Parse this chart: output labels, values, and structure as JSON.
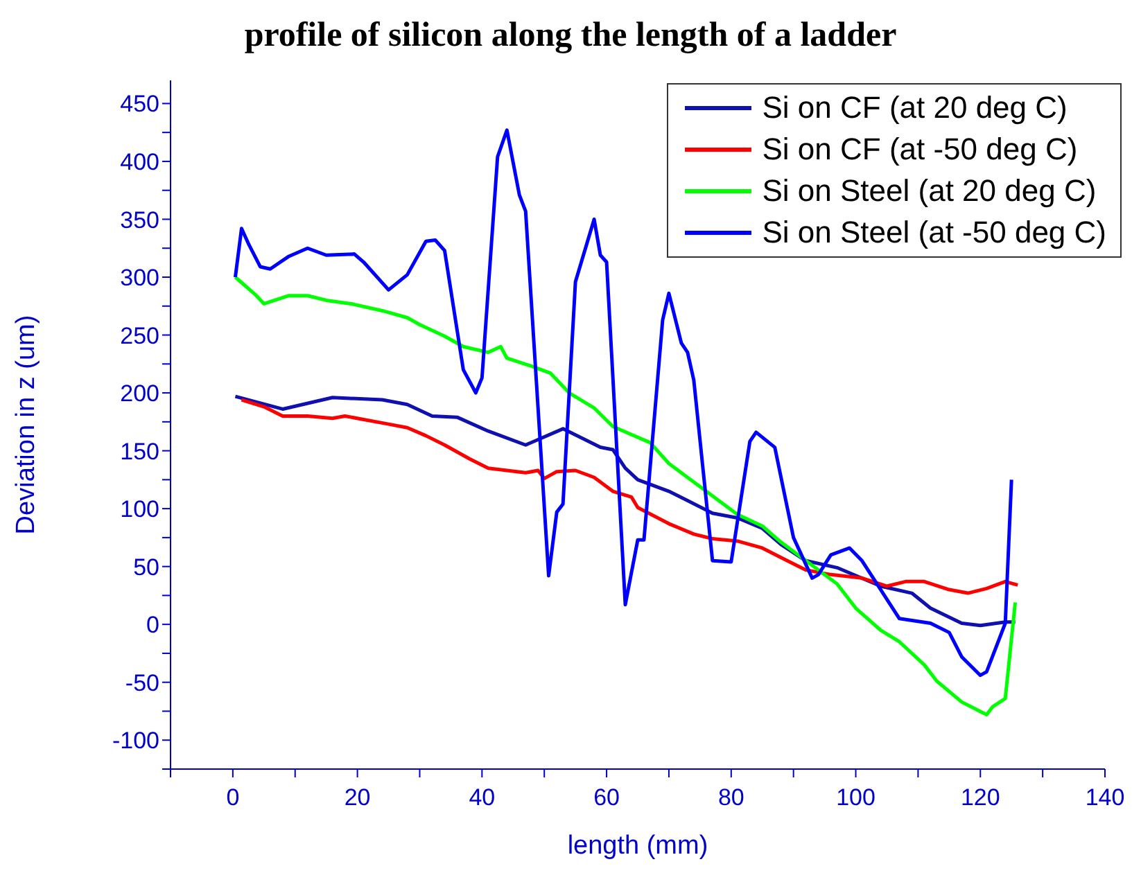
{
  "chart_data": {
    "type": "line",
    "title": "profile of silicon along the length of a ladder",
    "xlabel": "length (mm)",
    "ylabel": "Deviation in z (um)",
    "xlim": [
      -10,
      140
    ],
    "xticks": [
      {
        "value": -10,
        "label": null
      },
      0,
      {
        "value": 10,
        "label": null
      },
      20,
      {
        "value": 30,
        "label": null
      },
      40,
      {
        "value": 50,
        "label": null
      },
      60,
      {
        "value": 70,
        "label": null
      },
      80,
      {
        "value": 90,
        "label": null
      },
      100,
      {
        "value": 110,
        "label": null
      },
      120,
      {
        "value": 130,
        "label": null
      },
      140
    ],
    "ylim": [
      -125,
      470
    ],
    "yticks": [
      {
        "value": -125,
        "label": null
      },
      -100,
      {
        "value": -75,
        "label": null
      },
      -50,
      {
        "value": -25,
        "label": null
      },
      0,
      {
        "value": 25,
        "label": null
      },
      50,
      {
        "value": 75,
        "label": null
      },
      100,
      {
        "value": 125,
        "label": null
      },
      150,
      {
        "value": 175,
        "label": null
      },
      200,
      {
        "value": 225,
        "label": null
      },
      250,
      {
        "value": 275,
        "label": null
      },
      300,
      {
        "value": 325,
        "label": null
      },
      350,
      {
        "value": 375,
        "label": null
      },
      400,
      {
        "value": 425,
        "label": null
      },
      450
    ],
    "legend": "top right",
    "marker": "none",
    "line_style": "solid",
    "series": [
      {
        "name": "Si on CF (at 20 deg C)",
        "color": "#1010b0",
        "x": [
          0.4,
          8,
          16,
          24,
          28,
          32,
          36,
          41,
          47,
          53,
          59,
          61,
          63,
          65,
          70,
          73,
          77,
          81,
          85,
          88,
          92,
          97,
          104,
          109,
          112,
          117,
          120,
          124,
          125.6
        ],
        "values": [
          197,
          186,
          196,
          194,
          190,
          180,
          179,
          167,
          155,
          169,
          153,
          151,
          135,
          125,
          115,
          107,
          96,
          92,
          83,
          69,
          55,
          49,
          33,
          27,
          14,
          1,
          -1,
          2,
          2
        ]
      },
      {
        "name": "Si on CF (at -50 deg C)",
        "color": "#ff0000",
        "x": [
          1.4,
          5,
          8,
          12,
          16,
          18,
          21,
          25,
          28,
          31,
          34,
          38,
          41,
          47,
          49,
          50,
          52,
          55,
          58,
          61,
          64,
          65,
          70,
          74,
          77,
          81,
          85,
          89,
          92,
          96,
          101,
          105,
          108,
          111,
          115,
          118,
          121,
          124,
          126
        ],
        "values": [
          194,
          188,
          180,
          180,
          178,
          180,
          177,
          173,
          170,
          163,
          155,
          143,
          135,
          131,
          133,
          126,
          132,
          133,
          127,
          115,
          110,
          101,
          87,
          78,
          74,
          72,
          66,
          55,
          47,
          43,
          40,
          33,
          37,
          37,
          30,
          27,
          31,
          37,
          34
        ]
      },
      {
        "name": "Si on Steel (at 20 deg C)",
        "color": "#00ff00",
        "x": [
          0.4,
          3.6,
          5,
          9,
          12,
          15,
          19,
          24,
          28,
          30,
          34,
          37,
          41,
          43,
          44,
          48,
          51,
          54,
          58,
          61,
          64,
          67,
          70,
          74,
          78,
          81,
          85,
          88,
          92,
          97,
          100,
          104,
          107,
          111,
          113,
          117,
          121,
          122,
          124,
          125.6
        ],
        "values": [
          300,
          285,
          277,
          284,
          284,
          280,
          277,
          271,
          265,
          259,
          249,
          240,
          235,
          240,
          230,
          223,
          217,
          200,
          187,
          171,
          164,
          157,
          139,
          123,
          107,
          95,
          85,
          71,
          55,
          35,
          14,
          -5,
          -15,
          -35,
          -49,
          -67,
          -78,
          -71,
          -64,
          19
        ]
      },
      {
        "name": "Si on Steel (at -50 deg C)",
        "color": "#0000ff",
        "x": [
          0.4,
          1.4,
          2.5,
          4.4,
          6,
          9,
          12,
          15,
          19.5,
          21,
          25,
          28,
          31,
          32.5,
          34,
          37,
          39,
          40,
          42.5,
          44,
          46,
          47,
          50.7,
          52,
          53,
          55,
          58,
          59,
          60,
          63,
          65,
          66,
          69,
          70,
          72,
          73,
          74,
          77,
          80,
          83,
          84,
          87,
          90,
          93,
          94,
          96,
          99,
          101,
          107,
          112,
          115,
          117,
          120,
          121,
          124,
          125
        ],
        "values": [
          300,
          342,
          329,
          309,
          307,
          318,
          325,
          319,
          320,
          313,
          289,
          302,
          331,
          332,
          323,
          220,
          200,
          213,
          404,
          427,
          371,
          357,
          42,
          97,
          104,
          296,
          350,
          319,
          313,
          17,
          73,
          73,
          263,
          286,
          243,
          235,
          211,
          55,
          54,
          158,
          166,
          153,
          75,
          40,
          43,
          60,
          66,
          55,
          5,
          1,
          -7,
          -28,
          -44,
          -41,
          1,
          125
        ]
      }
    ]
  }
}
